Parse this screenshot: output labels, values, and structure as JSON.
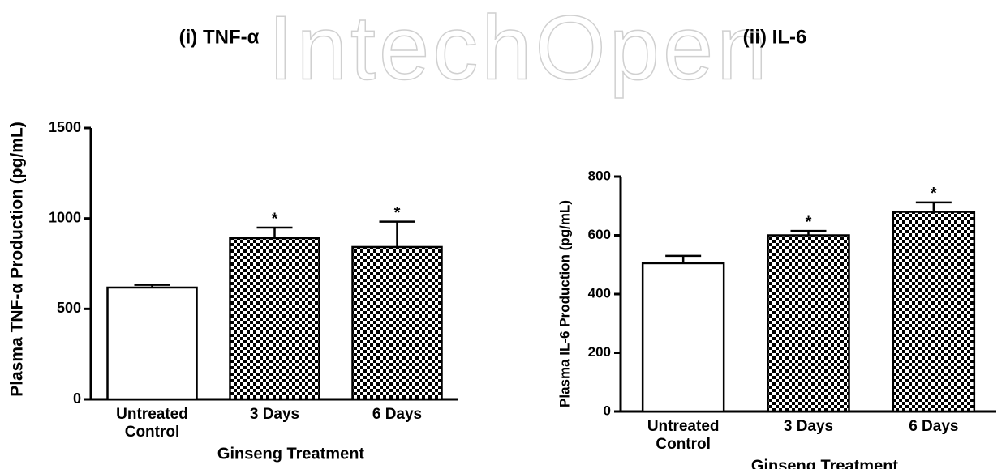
{
  "watermark": "IntechOpen",
  "chart_data": [
    {
      "type": "bar",
      "title": "(i) TNF-α",
      "y_label": "Plasma TNF-α Production (pg/mL)",
      "x_label": "Ginseng Treatment",
      "categories": [
        "Untreated Control",
        "3 Days",
        "6 Days"
      ],
      "values": [
        618,
        891,
        842
      ],
      "errors": [
        15,
        58,
        140
      ],
      "significance": [
        null,
        "*",
        "*"
      ],
      "fills": [
        "white",
        "checker",
        "checker"
      ],
      "ylim": [
        0,
        1500
      ],
      "yticks": [
        0,
        500,
        1000,
        1500
      ]
    },
    {
      "type": "bar",
      "title": "(ii) IL-6",
      "y_label": "Plasma IL-6 Production (pg/mL)",
      "x_label": "Ginseng Treatment",
      "categories": [
        "Untreated Control",
        "3 Days",
        "6 Days"
      ],
      "values": [
        505,
        600,
        680
      ],
      "errors": [
        25,
        15,
        32
      ],
      "significance": [
        null,
        "*",
        "*"
      ],
      "fills": [
        "white",
        "checker",
        "checker"
      ],
      "ylim": [
        0,
        800
      ],
      "yticks": [
        0,
        200,
        400,
        600,
        800
      ]
    }
  ]
}
